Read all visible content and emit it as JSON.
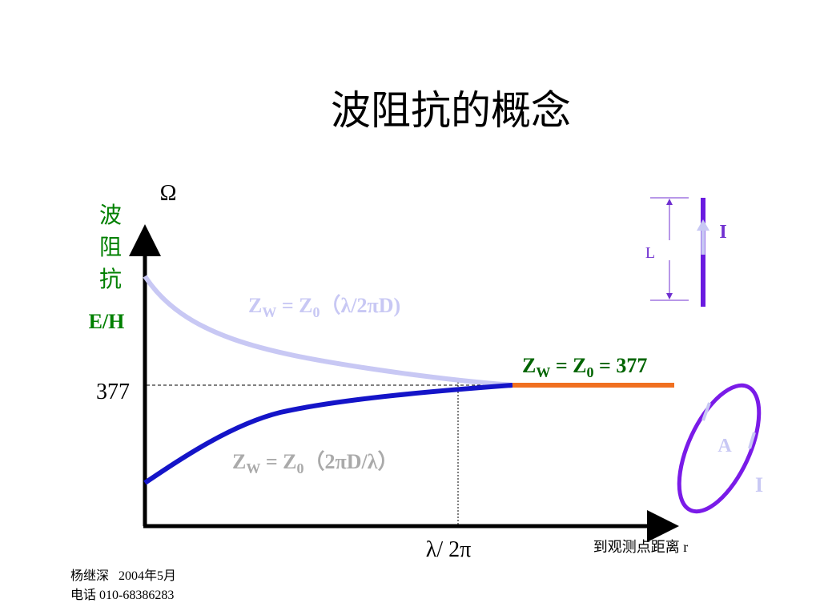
{
  "title": "波阻抗的概念",
  "y_axis": {
    "unit": "Ω",
    "label": [
      "波",
      "阻",
      "抗"
    ],
    "quantity": "E/H",
    "tick": "377"
  },
  "x_axis": {
    "tick": "λ/ 2π",
    "label": "到观测点距离 r"
  },
  "curves": [
    {
      "parts": [
        "Z",
        "W",
        " = Z",
        "0",
        "（λ/2πD)"
      ]
    },
    {
      "parts": [
        "Z",
        "W",
        " = Z",
        "0",
        " = 377"
      ]
    },
    {
      "parts": [
        "Z",
        "W",
        " = Z",
        "0",
        "（2πD/λ）"
      ]
    }
  ],
  "dipole": {
    "length": "L",
    "current": "I"
  },
  "loop": {
    "area": "A",
    "current": "I"
  },
  "footer": {
    "author": "杨继深   2004年5月",
    "phone": "电话 010-68386283"
  }
}
